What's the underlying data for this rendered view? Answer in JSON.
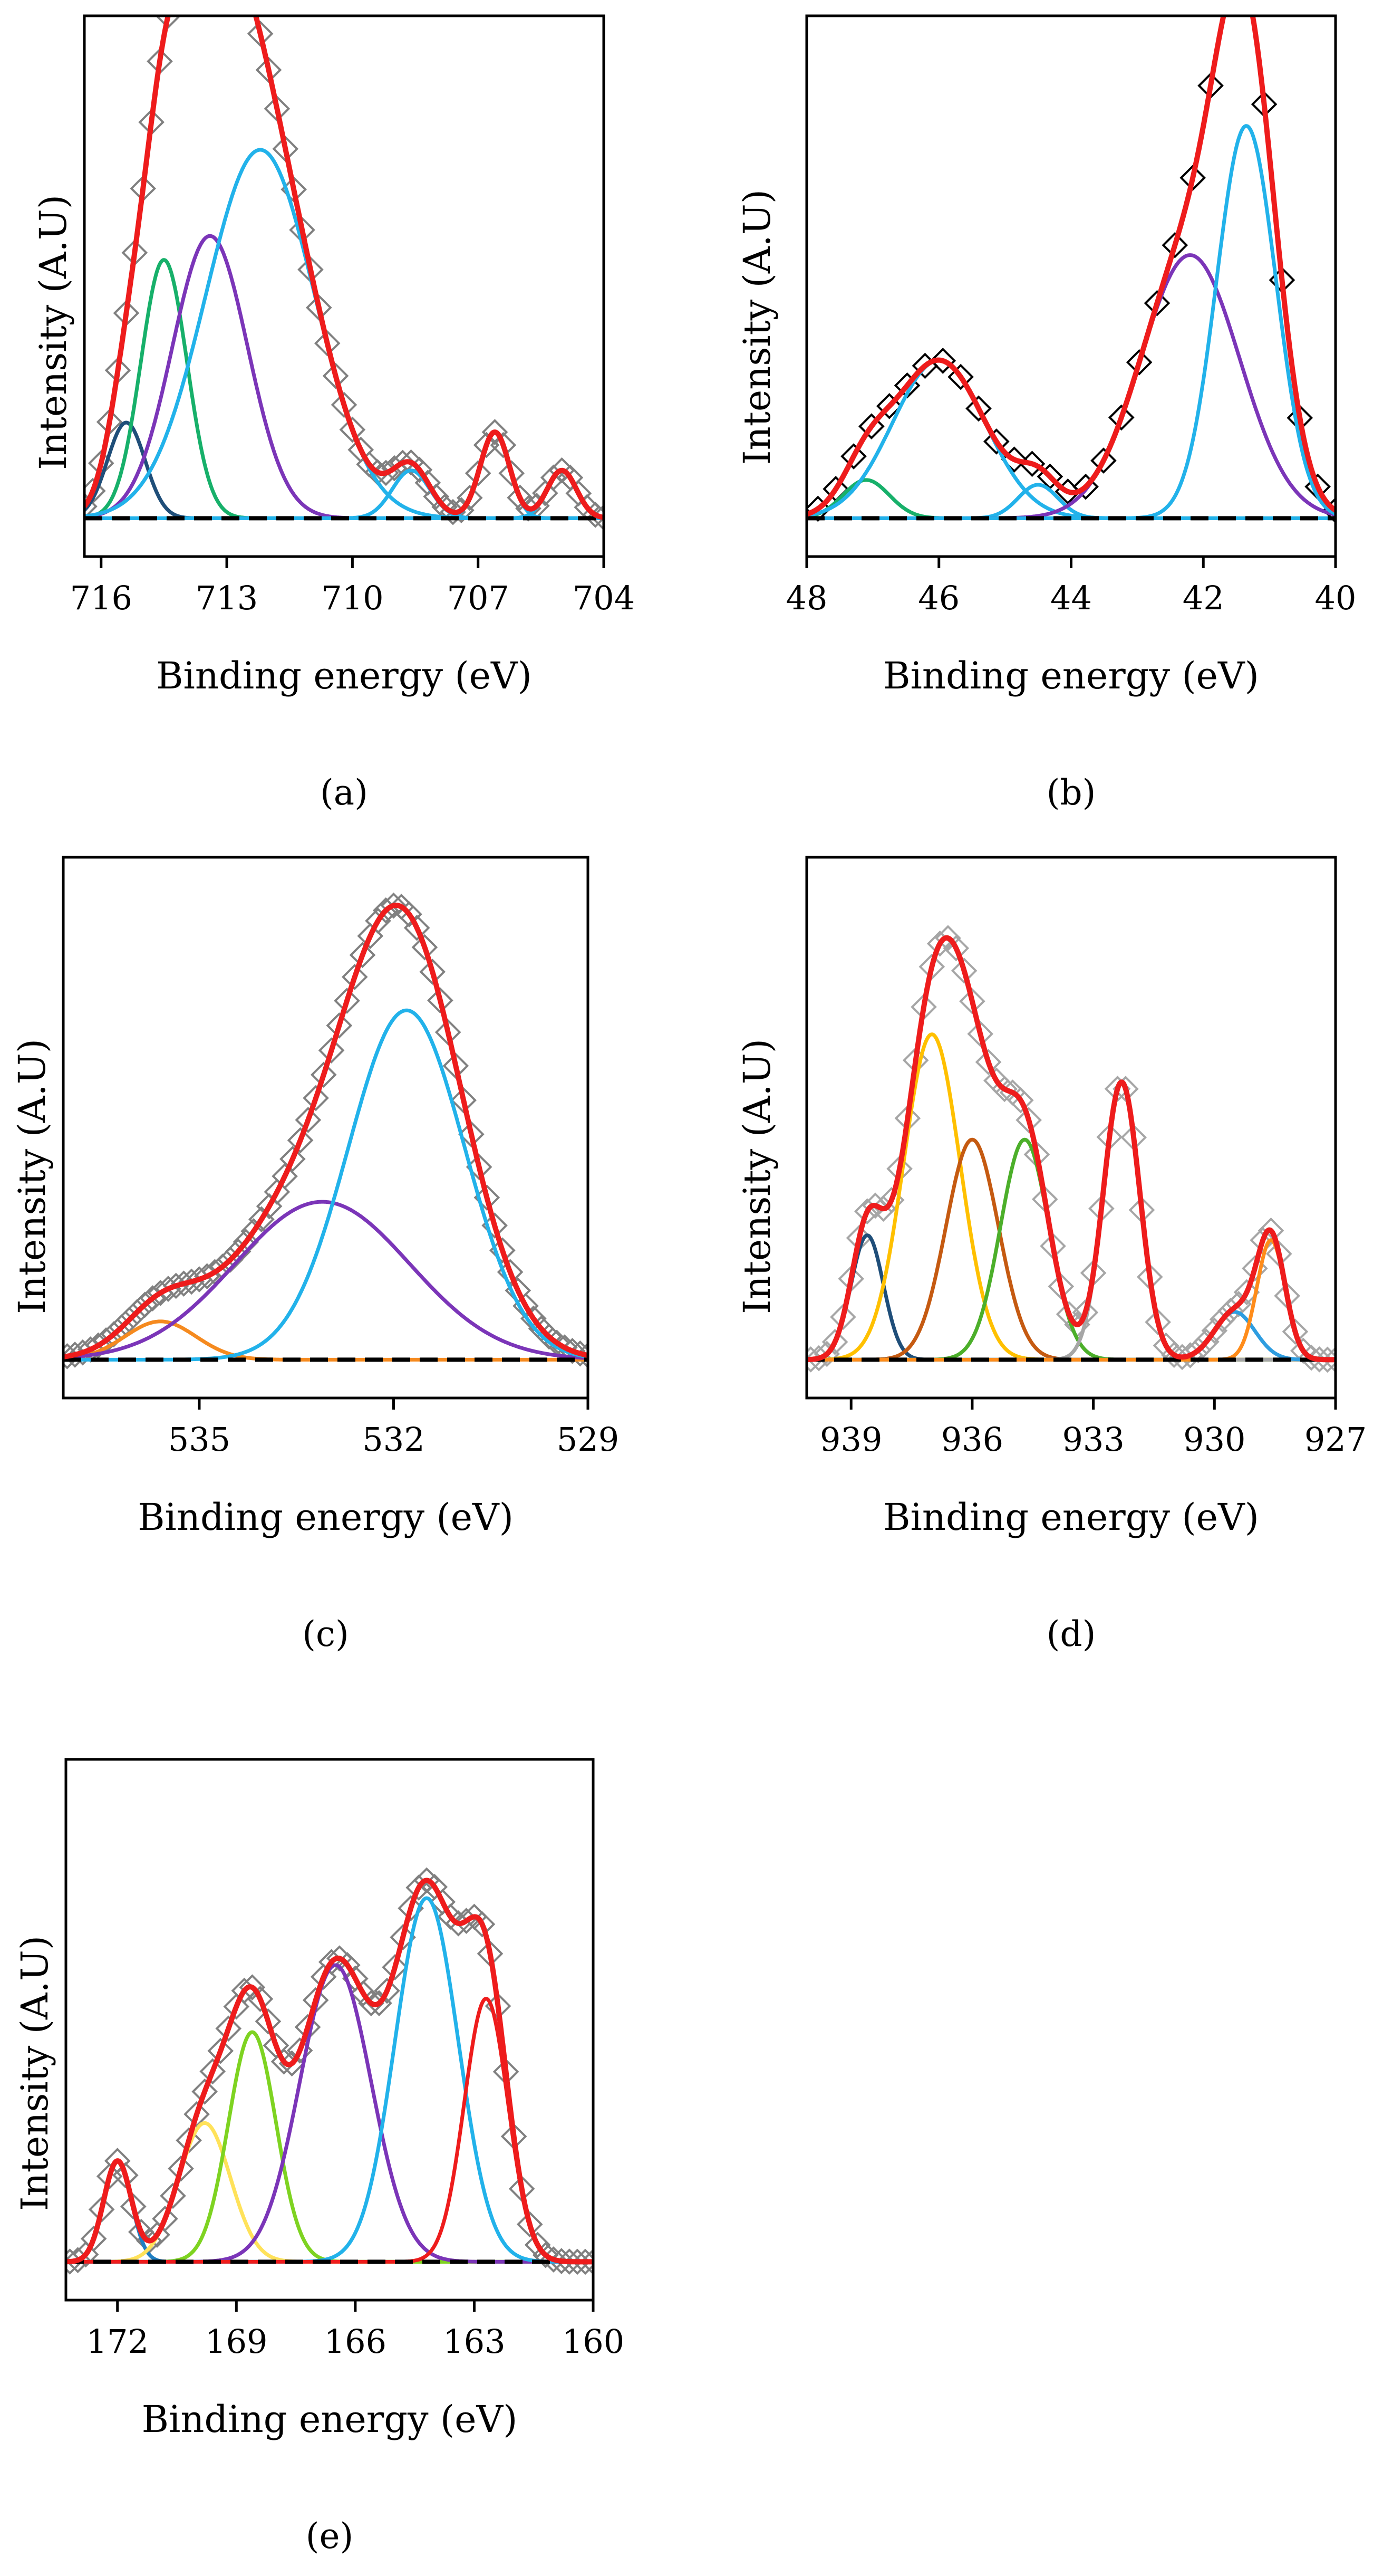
{
  "figure": {
    "axis_ylabel": "Intensity (A.U)",
    "axis_xlabel": "Binding energy (eV)"
  },
  "chart_data": [
    {
      "type": "line",
      "panel_label": "(a)",
      "title": "",
      "xlabel": "Binding energy (eV)",
      "ylabel": "Intensity (A.U)",
      "xlim": [
        716.4,
        704
      ],
      "ylim": [
        -0.08,
        1.05
      ],
      "xticks": [
        716,
        713,
        710,
        707,
        704
      ],
      "x_axis_reversed": true,
      "baseline": 0.0,
      "components": [
        {
          "name": "peak-1",
          "color": "#1f4e79",
          "center": 715.4,
          "fwhm": 0.45,
          "height": 0.2
        },
        {
          "name": "peak-2",
          "color": "#17b06a",
          "center": 714.5,
          "fwhm": 0.55,
          "height": 0.54
        },
        {
          "name": "peak-3",
          "color": "#7b35b8",
          "center": 713.4,
          "fwhm": 0.9,
          "height": 0.59
        },
        {
          "name": "peak-4",
          "color": "#22b2ea",
          "center": 712.2,
          "fwhm": 1.3,
          "height": 0.77
        },
        {
          "name": "peak-5",
          "color": "#22b2ea",
          "center": 708.6,
          "fwhm": 0.45,
          "height": 0.1
        },
        {
          "name": "peak-6",
          "color": "#22b2ea",
          "center": 706.6,
          "fwhm": 0.35,
          "height": 0.18
        },
        {
          "name": "peak-7",
          "color": "#22b2ea",
          "center": 705.0,
          "fwhm": 0.35,
          "height": 0.1
        }
      ],
      "envelope": {
        "color": "#ee1c1c"
      },
      "data_markers": {
        "color": "#808080",
        "x_start": 716.4,
        "x_end": 704.0,
        "step": 0.2
      }
    },
    {
      "type": "line",
      "panel_label": "(b)",
      "title": "",
      "xlabel": "Binding energy (eV)",
      "ylabel": "Intensity (A.U)",
      "xlim": [
        48,
        40
      ],
      "ylim": [
        -0.08,
        1.05
      ],
      "xticks": [
        48,
        46,
        44,
        42,
        40
      ],
      "x_axis_reversed": true,
      "baseline": 0.0,
      "components": [
        {
          "name": "peak-1",
          "color": "#17b06a",
          "center": 47.1,
          "fwhm": 0.35,
          "height": 0.08
        },
        {
          "name": "peak-2",
          "color": "#22b2ea",
          "center": 46.0,
          "fwhm": 0.7,
          "height": 0.33
        },
        {
          "name": "peak-3",
          "color": "#22b2ea",
          "center": 44.5,
          "fwhm": 0.3,
          "height": 0.07
        },
        {
          "name": "peak-4",
          "color": "#7b35b8",
          "center": 42.2,
          "fwhm": 0.75,
          "height": 0.55
        },
        {
          "name": "peak-5",
          "color": "#22b2ea",
          "center": 41.35,
          "fwhm": 0.45,
          "height": 0.82
        }
      ],
      "envelope": {
        "color": "#ee1c1c"
      },
      "data_markers": {
        "color": "#000000",
        "x_start": 48.0,
        "x_end": 40.0,
        "step": 0.27
      }
    },
    {
      "type": "line",
      "panel_label": "(c)",
      "title": "",
      "xlabel": "Binding energy (eV)",
      "ylabel": "Intensity (A.U)",
      "xlim": [
        537.1,
        529
      ],
      "ylim": [
        -0.08,
        1.05
      ],
      "xticks": [
        535,
        532,
        529
      ],
      "x_axis_reversed": true,
      "baseline": 0.0,
      "components": [
        {
          "name": "peak-1",
          "color": "#f58a1f",
          "center": 535.6,
          "fwhm": 0.55,
          "height": 0.08
        },
        {
          "name": "peak-2",
          "color": "#7b35b8",
          "center": 533.1,
          "fwhm": 1.35,
          "height": 0.33
        },
        {
          "name": "peak-3",
          "color": "#22b2ea",
          "center": 531.8,
          "fwhm": 0.9,
          "height": 0.73
        }
      ],
      "envelope": {
        "color": "#ee1c1c"
      },
      "data_markers": {
        "color": "#808080",
        "x_start": 537.1,
        "x_end": 529.0,
        "step": 0.12
      }
    },
    {
      "type": "line",
      "panel_label": "(d)",
      "title": "",
      "xlabel": "Binding energy (eV)",
      "ylabel": "Intensity (A.U)",
      "xlim": [
        940.1,
        927
      ],
      "ylim": [
        -0.08,
        1.05
      ],
      "xticks": [
        939,
        936,
        933,
        930,
        927
      ],
      "x_axis_reversed": true,
      "baseline": 0.0,
      "components": [
        {
          "name": "peak-1",
          "color": "#1f4e79",
          "center": 938.6,
          "fwhm": 0.4,
          "height": 0.26
        },
        {
          "name": "peak-2",
          "color": "#ffc000",
          "center": 937.0,
          "fwhm": 0.7,
          "height": 0.68
        },
        {
          "name": "peak-3",
          "color": "#c55a11",
          "center": 936.0,
          "fwhm": 0.65,
          "height": 0.46
        },
        {
          "name": "peak-4",
          "color": "#4caf2a",
          "center": 934.7,
          "fwhm": 0.6,
          "height": 0.46
        },
        {
          "name": "peak-5",
          "color": "#a6a6a6",
          "center": 932.3,
          "fwhm": 0.45,
          "height": 0.58
        },
        {
          "name": "peak-6",
          "color": "#2e9de0",
          "center": 929.5,
          "fwhm": 0.5,
          "height": 0.1
        },
        {
          "name": "peak-7",
          "color": "#ff8c1a",
          "center": 928.6,
          "fwhm": 0.35,
          "height": 0.25
        }
      ],
      "envelope": {
        "color": "#ee1c1c"
      },
      "data_markers": {
        "color": "#a6a6a6",
        "x_start": 940.1,
        "x_end": 927.0,
        "step": 0.2
      }
    },
    {
      "type": "line",
      "panel_label": "(e)",
      "title": "",
      "xlabel": "Binding energy (eV)",
      "ylabel": "Intensity (A.U)",
      "xlim": [
        173.3,
        160
      ],
      "ylim": [
        -0.08,
        1.05
      ],
      "xticks": [
        172,
        169,
        166,
        163,
        160
      ],
      "x_axis_reversed": true,
      "baseline": 0.0,
      "components": [
        {
          "name": "peak-1",
          "color": "#1f7ec2",
          "center": 172.0,
          "fwhm": 0.35,
          "height": 0.21
        },
        {
          "name": "peak-2",
          "color": "#ffe25a",
          "center": 169.8,
          "fwhm": 0.65,
          "height": 0.29
        },
        {
          "name": "peak-3",
          "color": "#7ed321",
          "center": 168.6,
          "fwhm": 0.6,
          "height": 0.48
        },
        {
          "name": "peak-4",
          "color": "#7b35b8",
          "center": 166.5,
          "fwhm": 0.9,
          "height": 0.62
        },
        {
          "name": "peak-5",
          "color": "#22b2ea",
          "center": 164.2,
          "fwhm": 0.8,
          "height": 0.76
        },
        {
          "name": "peak-6",
          "color": "#ee1c1c",
          "center": 162.7,
          "fwhm": 0.55,
          "height": 0.55
        }
      ],
      "envelope": {
        "color": "#ee1c1c"
      },
      "data_markers": {
        "color": "#808080",
        "x_start": 173.3,
        "x_end": 160.0,
        "step": 0.2
      }
    }
  ]
}
